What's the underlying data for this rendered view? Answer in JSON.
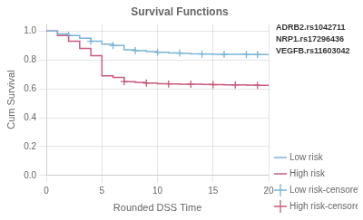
{
  "chart_data": {
    "type": "line",
    "title": "Survival Functions",
    "xlabel": "Rounded DSS Time",
    "ylabel": "Cum Survival",
    "annotation": "ADRB2.rs1042711\nNRP1.rs17296436\nVEGFB.rs11603042",
    "xlim": [
      0,
      20
    ],
    "ylim": [
      0.0,
      1.05
    ],
    "xticks": [
      0,
      5,
      10,
      15,
      20
    ],
    "yticks": [
      {
        "value": 0.0,
        "label": "0.0"
      },
      0.2,
      0.4,
      0.6,
      0.8,
      {
        "value": 1.0,
        "label": "1.0"
      }
    ],
    "grid": true,
    "legend": "right",
    "series": [
      {
        "name": "Low risk",
        "type": "line",
        "line_style": "solid",
        "color": "#7ab4d8",
        "x": [
          0,
          1,
          1,
          2,
          2,
          3,
          3,
          4,
          4,
          5,
          5,
          6,
          6,
          7,
          7,
          8,
          8,
          9,
          9,
          10,
          10,
          11,
          11,
          12,
          12,
          13,
          13,
          14,
          14,
          15,
          15,
          16,
          16,
          17,
          17,
          18,
          18,
          19,
          19,
          20
        ],
        "values": [
          1.0,
          1.0,
          0.98,
          0.98,
          0.97,
          0.97,
          0.95,
          0.95,
          0.93,
          0.93,
          0.91,
          0.91,
          0.9,
          0.9,
          0.87,
          0.87,
          0.865,
          0.865,
          0.858,
          0.858,
          0.853,
          0.853,
          0.848,
          0.848,
          0.845,
          0.845,
          0.843,
          0.843,
          0.841,
          0.841,
          0.84,
          0.84,
          0.839,
          0.839,
          0.839,
          0.839,
          0.838,
          0.838,
          0.838,
          0.838
        ]
      },
      {
        "name": "High risk",
        "type": "line",
        "line_style": "solid",
        "color": "#c85a7a",
        "x": [
          0,
          1,
          1,
          2,
          2,
          3,
          3,
          4,
          4,
          5,
          5,
          6,
          6,
          7,
          7,
          8,
          8,
          9,
          9,
          10,
          10,
          11,
          11,
          12,
          12,
          13,
          13,
          14,
          14,
          15,
          15,
          16,
          16,
          17,
          17,
          18,
          18,
          19,
          19,
          20
        ],
        "values": [
          1.0,
          1.0,
          0.97,
          0.97,
          0.93,
          0.93,
          0.88,
          0.88,
          0.83,
          0.83,
          0.69,
          0.69,
          0.68,
          0.68,
          0.65,
          0.65,
          0.645,
          0.645,
          0.64,
          0.64,
          0.636,
          0.636,
          0.634,
          0.634,
          0.633,
          0.633,
          0.632,
          0.632,
          0.631,
          0.631,
          0.629,
          0.629,
          0.628,
          0.628,
          0.627,
          0.627,
          0.626,
          0.626,
          0.625,
          0.625
        ]
      },
      {
        "name": "Low risk-censored",
        "type": "scatter",
        "marker": "plus",
        "color": "#7ab4d8",
        "x": [
          2,
          4,
          6,
          8,
          10,
          12,
          14,
          16,
          18,
          19
        ],
        "values": [
          0.97,
          0.93,
          0.9,
          0.865,
          0.853,
          0.848,
          0.841,
          0.839,
          0.838,
          0.838
        ]
      },
      {
        "name": "High risk-censored",
        "type": "scatter",
        "marker": "plus",
        "color": "#c85a7a",
        "x": [
          7,
          9,
          11,
          13,
          15,
          17,
          19
        ],
        "values": [
          0.65,
          0.64,
          0.634,
          0.632,
          0.629,
          0.627,
          0.625
        ]
      }
    ]
  }
}
